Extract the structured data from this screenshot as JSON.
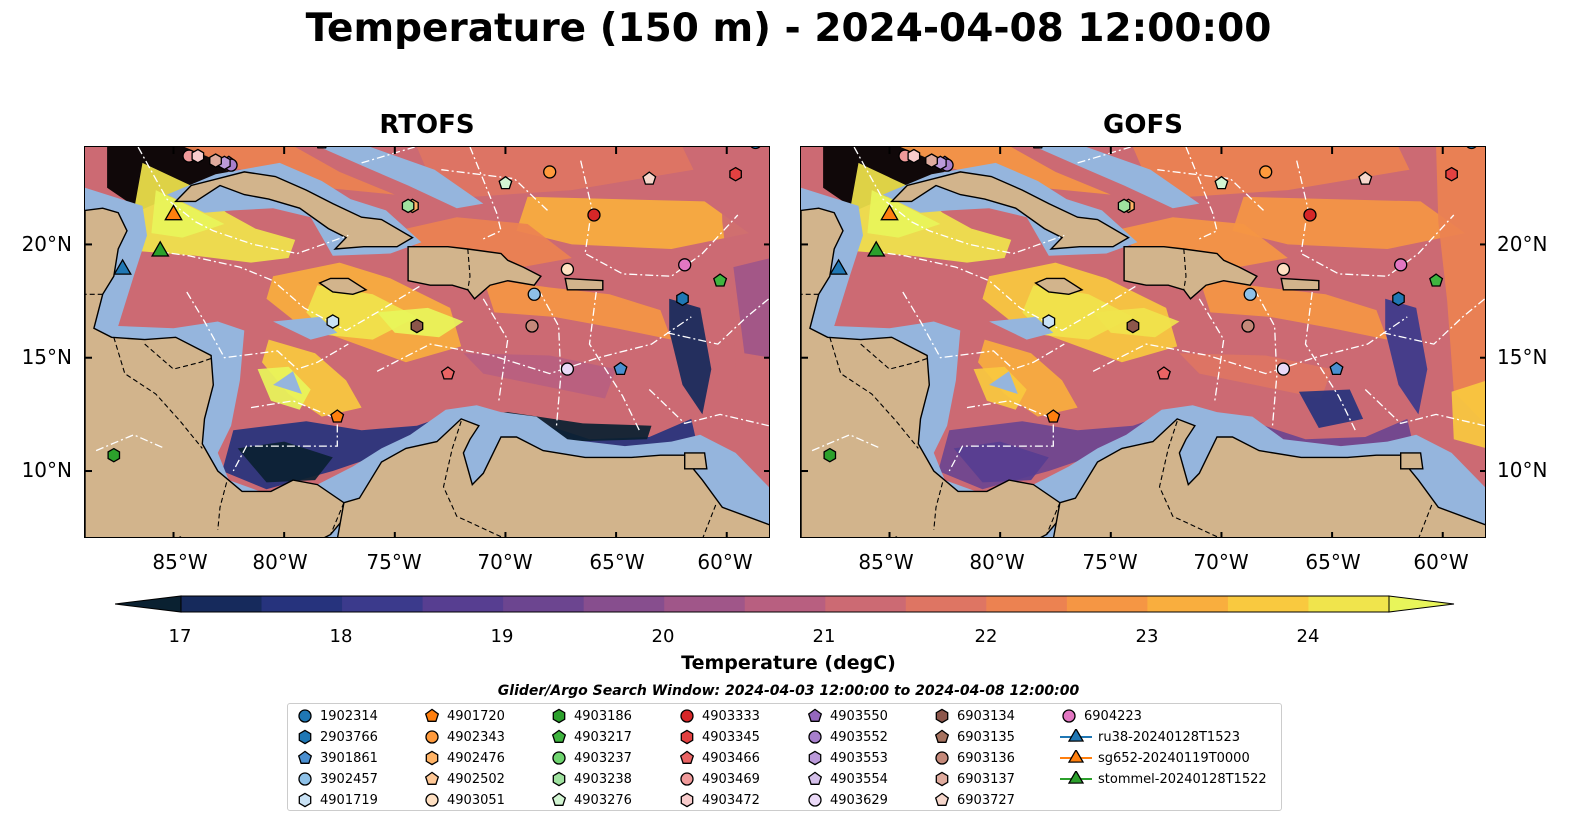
{
  "title": "Temperature (150 m) - 2024-04-08 12:00:00",
  "panels": [
    {
      "title": "RTOFS"
    },
    {
      "title": "GOFS"
    }
  ],
  "map": {
    "lon_range": [
      -89,
      -58
    ],
    "lat_range": [
      7,
      24.3
    ],
    "lon_ticks": [
      "85°W",
      "80°W",
      "75°W",
      "70°W",
      "65°W",
      "60°W"
    ],
    "lon_tick_values": [
      -85,
      -80,
      -75,
      -70,
      -65,
      -60
    ],
    "lat_ticks": [
      "20°N",
      "15°N",
      "10°N"
    ],
    "lat_tick_values": [
      20,
      15,
      10
    ],
    "colors": {
      "land": "#d2b48c",
      "shelf": "#95b5dd",
      "coast": "#000000",
      "eez": "#ffffff"
    }
  },
  "colorbar": {
    "label": "Temperature (degC)",
    "ticks": [
      "17",
      "18",
      "19",
      "20",
      "21",
      "22",
      "23",
      "24"
    ],
    "min": 17,
    "max": 24.5,
    "step": 0.5,
    "extend": "both",
    "colors": [
      "#0a2131",
      "#162a5c",
      "#26337d",
      "#3b3a8c",
      "#573e91",
      "#6c4590",
      "#874e8e",
      "#a05689",
      "#b85f80",
      "#cc6a73",
      "#de7563",
      "#ec8251",
      "#f59644",
      "#f9ae3e",
      "#f9c93f",
      "#f0e44c",
      "#e8f55a"
    ]
  },
  "search_window": "Glider/Argo Search Window: 2024-04-03 12:00:00 to 2024-04-08 12:00:00",
  "legend": {
    "columns": [
      [
        {
          "label": "1902314",
          "marker": "circle",
          "color": "#1f77b4"
        },
        {
          "label": "2903766",
          "marker": "hexagon",
          "color": "#1f77b4"
        },
        {
          "label": "3901861",
          "marker": "pentagon",
          "color": "#4a8fd0"
        },
        {
          "label": "3902457",
          "marker": "circle",
          "color": "#8ec1e8"
        },
        {
          "label": "4901719",
          "marker": "hexagon",
          "color": "#c9e2f5"
        }
      ],
      [
        {
          "label": "4901720",
          "marker": "pentagon",
          "color": "#ff7f0e"
        },
        {
          "label": "4902343",
          "marker": "circle",
          "color": "#ff9a3c"
        },
        {
          "label": "4902476",
          "marker": "hexagon",
          "color": "#ffb366"
        },
        {
          "label": "4902502",
          "marker": "pentagon",
          "color": "#ffc896"
        },
        {
          "label": "4903051",
          "marker": "circle",
          "color": "#ffe0c2"
        }
      ],
      [
        {
          "label": "4903186",
          "marker": "hexagon",
          "color": "#2ca02c"
        },
        {
          "label": "4903217",
          "marker": "pentagon",
          "color": "#3fb43f"
        },
        {
          "label": "4903237",
          "marker": "circle",
          "color": "#6fd46f"
        },
        {
          "label": "4903238",
          "marker": "hexagon",
          "color": "#9fe29f"
        },
        {
          "label": "4903276",
          "marker": "pentagon",
          "color": "#d2f5d2"
        }
      ],
      [
        {
          "label": "4903333",
          "marker": "circle",
          "color": "#d62728"
        },
        {
          "label": "4903345",
          "marker": "hexagon",
          "color": "#e34141"
        },
        {
          "label": "4903466",
          "marker": "pentagon",
          "color": "#ea6464"
        },
        {
          "label": "4903469",
          "marker": "circle",
          "color": "#f09a9a"
        },
        {
          "label": "4903472",
          "marker": "hexagon",
          "color": "#f8cccc"
        }
      ],
      [
        {
          "label": "4903550",
          "marker": "pentagon",
          "color": "#9467bd"
        },
        {
          "label": "4903552",
          "marker": "circle",
          "color": "#a77fcc"
        },
        {
          "label": "4903553",
          "marker": "hexagon",
          "color": "#bb9ada"
        },
        {
          "label": "4903554",
          "marker": "pentagon",
          "color": "#d4bfe9"
        },
        {
          "label": "4903629",
          "marker": "circle",
          "color": "#ead9f7"
        }
      ],
      [
        {
          "label": "6903134",
          "marker": "hexagon",
          "color": "#8c564b"
        },
        {
          "label": "6903135",
          "marker": "pentagon",
          "color": "#a6725f"
        },
        {
          "label": "6903136",
          "marker": "circle",
          "color": "#c4897a"
        },
        {
          "label": "6903137",
          "marker": "hexagon",
          "color": "#dfab9e"
        },
        {
          "label": "6903727",
          "marker": "pentagon",
          "color": "#f6d7cc"
        }
      ],
      [
        {
          "label": "6904223",
          "marker": "circle",
          "color": "#e377c2"
        },
        {
          "label": "ru38-20240128T1523",
          "marker": "triangle-line",
          "color": "#1f77b4"
        },
        {
          "label": "sg652-20240119T0000",
          "marker": "triangle-line",
          "color": "#ff7f0e"
        },
        {
          "label": "stommel-20240128T1522",
          "marker": "triangle-line",
          "color": "#2ca02c"
        }
      ]
    ]
  },
  "platforms": [
    {
      "id": "1902314",
      "lon": -58.7,
      "lat": 24.5
    },
    {
      "id": "2903766",
      "lon": -62.0,
      "lat": 17.6
    },
    {
      "id": "3901861",
      "lon": -64.8,
      "lat": 14.5
    },
    {
      "id": "3902457",
      "lon": -68.7,
      "lat": 17.8
    },
    {
      "id": "4901719",
      "lon": -77.8,
      "lat": 16.6
    },
    {
      "id": "4901720",
      "lon": -77.6,
      "lat": 12.4
    },
    {
      "id": "4902343",
      "lon": -68.0,
      "lat": 23.2
    },
    {
      "id": "4902476",
      "lon": -74.2,
      "lat": 21.7
    },
    {
      "id": "4902502",
      "lon": -84.7,
      "lat": 6.8
    },
    {
      "id": "4903051",
      "lon": -67.2,
      "lat": 18.9
    },
    {
      "id": "4903186",
      "lon": -87.7,
      "lat": 10.7
    },
    {
      "id": "4903217",
      "lon": -60.3,
      "lat": 18.4
    },
    {
      "id": "4903237",
      "lon": -80.2,
      "lat": 24.6
    },
    {
      "id": "4903238",
      "lon": -74.4,
      "lat": 21.7
    },
    {
      "id": "4903276",
      "lon": -70.0,
      "lat": 22.7
    },
    {
      "id": "4903333",
      "lon": -66.0,
      "lat": 21.3
    },
    {
      "id": "4903345",
      "lon": -59.6,
      "lat": 23.1
    },
    {
      "id": "4903466",
      "lon": -72.6,
      "lat": 14.3
    },
    {
      "id": "4903469",
      "lon": -84.3,
      "lat": 23.9
    },
    {
      "id": "4903472",
      "lon": -83.9,
      "lat": 23.9
    },
    {
      "id": "4903550",
      "lon": -82.5,
      "lat": 23.6
    },
    {
      "id": "4903552",
      "lon": -82.4,
      "lat": 23.5
    },
    {
      "id": "4903553",
      "lon": -82.7,
      "lat": 23.6
    },
    {
      "id": "4903554",
      "lon": -78.3,
      "lat": 24.5
    },
    {
      "id": "4903629",
      "lon": -67.2,
      "lat": 14.5
    },
    {
      "id": "6903134",
      "lon": -74.0,
      "lat": 16.4
    },
    {
      "id": "6903135",
      "lon": -71.5,
      "lat": 24.7
    },
    {
      "id": "6903136",
      "lon": -68.8,
      "lat": 16.4
    },
    {
      "id": "6903137",
      "lon": -83.1,
      "lat": 23.7
    },
    {
      "id": "6903727",
      "lon": -63.5,
      "lat": 22.9
    },
    {
      "id": "6904223",
      "lon": -61.9,
      "lat": 19.1
    },
    {
      "id": "ru38-20240128T1523",
      "lon": -87.3,
      "lat": 18.9
    },
    {
      "id": "sg652-20240119T0000",
      "lon": -85.0,
      "lat": 21.3
    },
    {
      "id": "stommel-20240128T1522",
      "lon": -85.6,
      "lat": 19.7
    }
  ]
}
